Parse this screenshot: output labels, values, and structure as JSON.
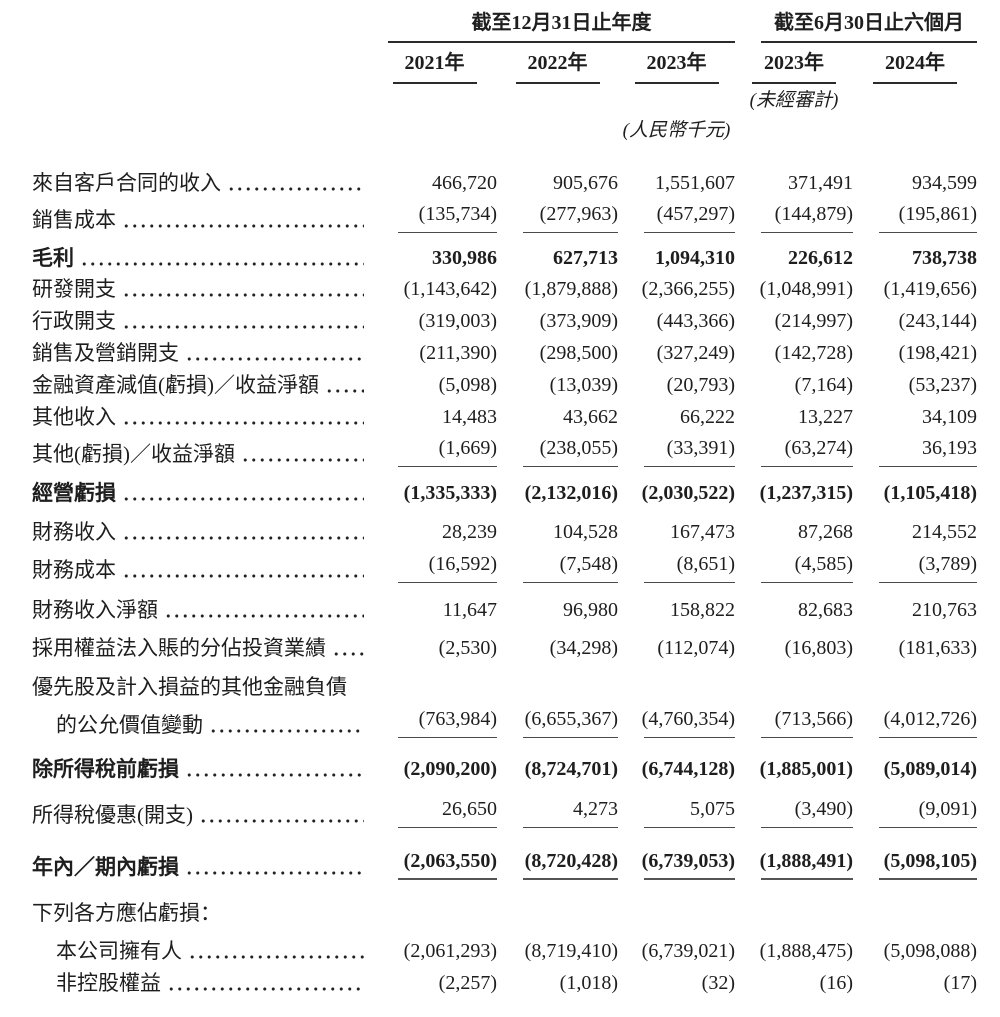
{
  "header": {
    "group_annual": {
      "label": "截至12月31日止年度",
      "years": [
        "2021年",
        "2022年",
        "2023年"
      ]
    },
    "group_interim": {
      "label": "截至6月30日止六個月",
      "years": [
        "2023年",
        "2024年"
      ]
    },
    "unaudited_note": "(未經審計)",
    "currency_note": "(人民幣千元)"
  },
  "rows": [
    {
      "label": "來自客戶合同的收入",
      "values": [
        "466,720",
        "905,676",
        "1,551,607",
        "371,491",
        "934,599"
      ],
      "bold": false,
      "indent": false,
      "leader": true,
      "rule": false,
      "strong_rule": false,
      "gap": 0
    },
    {
      "label": "銷售成本",
      "values": [
        "(135,734)",
        "(277,963)",
        "(457,297)",
        "(144,879)",
        "(195,861)"
      ],
      "bold": false,
      "indent": false,
      "leader": true,
      "rule": true,
      "strong_rule": false,
      "gap": 5
    },
    {
      "label": "毛利",
      "values": [
        "330,986",
        "627,713",
        "1,094,310",
        "226,612",
        "738,738"
      ],
      "bold": true,
      "indent": false,
      "leader": true,
      "rule": false,
      "strong_rule": false,
      "gap": 12
    },
    {
      "label": "研發開支",
      "values": [
        "(1,143,642)",
        "(1,879,888)",
        "(2,366,255)",
        "(1,048,991)",
        "(1,419,656)"
      ],
      "bold": false,
      "indent": false,
      "leader": true,
      "rule": false,
      "strong_rule": false,
      "gap": 5
    },
    {
      "label": "行政開支",
      "values": [
        "(319,003)",
        "(373,909)",
        "(443,366)",
        "(214,997)",
        "(243,144)"
      ],
      "bold": false,
      "indent": false,
      "leader": true,
      "rule": false,
      "strong_rule": false,
      "gap": 6
    },
    {
      "label": "銷售及營銷開支",
      "values": [
        "(211,390)",
        "(298,500)",
        "(327,249)",
        "(142,728)",
        "(198,421)"
      ],
      "bold": false,
      "indent": false,
      "leader": true,
      "rule": false,
      "strong_rule": false,
      "gap": 6
    },
    {
      "label": "金融資產減值(虧損)／收益淨額",
      "values": [
        "(5,098)",
        "(13,039)",
        "(20,793)",
        "(7,164)",
        "(53,237)"
      ],
      "bold": false,
      "indent": false,
      "leader": true,
      "rule": false,
      "strong_rule": false,
      "gap": 6
    },
    {
      "label": "其他收入",
      "values": [
        "14,483",
        "43,662",
        "66,222",
        "13,227",
        "34,109"
      ],
      "bold": false,
      "indent": false,
      "leader": true,
      "rule": false,
      "strong_rule": false,
      "gap": 6
    },
    {
      "label": "其他(虧損)／收益淨額",
      "values": [
        "(1,669)",
        "(238,055)",
        "(33,391)",
        "(63,274)",
        "36,193"
      ],
      "bold": false,
      "indent": false,
      "leader": true,
      "rule": true,
      "strong_rule": false,
      "gap": 5
    },
    {
      "label": "經營虧損",
      "values": [
        "(1,335,333)",
        "(2,132,016)",
        "(2,030,522)",
        "(1,237,315)",
        "(1,105,418)"
      ],
      "bold": true,
      "indent": false,
      "leader": true,
      "rule": false,
      "strong_rule": false,
      "gap": 13
    },
    {
      "label": "財務收入",
      "values": [
        "28,239",
        "104,528",
        "167,473",
        "87,268",
        "214,552"
      ],
      "bold": false,
      "indent": false,
      "leader": true,
      "rule": false,
      "strong_rule": false,
      "gap": 13
    },
    {
      "label": "財務成本",
      "values": [
        "(16,592)",
        "(7,548)",
        "(8,651)",
        "(4,585)",
        "(3,789)"
      ],
      "bold": false,
      "indent": false,
      "leader": true,
      "rule": true,
      "strong_rule": false,
      "gap": 6
    },
    {
      "label": "財務收入淨額",
      "values": [
        "11,647",
        "96,980",
        "158,822",
        "82,683",
        "210,763"
      ],
      "bold": false,
      "indent": false,
      "leader": true,
      "rule": false,
      "strong_rule": false,
      "gap": 14
    },
    {
      "label": "採用權益法入賬的分佔投資業績",
      "values": [
        "(2,530)",
        "(34,298)",
        "(112,074)",
        "(16,803)",
        "(181,633)"
      ],
      "bold": false,
      "indent": false,
      "leader": true,
      "rule": false,
      "strong_rule": false,
      "gap": 12
    },
    {
      "label": "優先股及計入損益的其他金融負債",
      "values": [],
      "bold": false,
      "indent": false,
      "leader": false,
      "rule": false,
      "strong_rule": false,
      "gap": 13
    },
    {
      "label": "的公允價值變動",
      "values": [
        "(763,984)",
        "(6,655,367)",
        "(4,760,354)",
        "(713,566)",
        "(4,012,726)"
      ],
      "bold": false,
      "indent": true,
      "leader": true,
      "rule": true,
      "strong_rule": false,
      "gap": 6
    },
    {
      "label": "除所得稅前虧損",
      "values": [
        "(2,090,200)",
        "(8,724,701)",
        "(6,744,128)",
        "(1,885,001)",
        "(5,089,014)"
      ],
      "bold": true,
      "indent": false,
      "leader": true,
      "rule": false,
      "strong_rule": false,
      "gap": 18
    },
    {
      "label": "所得稅優惠(開支)",
      "values": [
        "26,650",
        "4,273",
        "5,075",
        "(3,490)",
        "(9,091)"
      ],
      "bold": false,
      "indent": false,
      "leader": true,
      "rule": true,
      "strong_rule": false,
      "gap": 14
    },
    {
      "label": "年內／期內虧損",
      "values": [
        "(2,063,550)",
        "(8,720,428)",
        "(6,739,053)",
        "(1,888,491)",
        "(5,098,105)"
      ],
      "bold": true,
      "indent": false,
      "leader": true,
      "rule": true,
      "strong_rule": true,
      "gap": 20
    },
    {
      "label": "下列各方應佔虧損：",
      "values": [],
      "bold": false,
      "indent": false,
      "leader": false,
      "rule": false,
      "strong_rule": false,
      "gap": 20
    },
    {
      "label": "本公司擁有人",
      "values": [
        "(2,061,293)",
        "(8,719,410)",
        "(6,739,021)",
        "(1,888,475)",
        "(5,098,088)"
      ],
      "bold": false,
      "indent": true,
      "leader": true,
      "rule": false,
      "strong_rule": false,
      "gap": 12
    },
    {
      "label": "非控股權益",
      "values": [
        "(2,257)",
        "(1,018)",
        "(32)",
        "(16)",
        "(17)"
      ],
      "bold": false,
      "indent": true,
      "leader": true,
      "rule": false,
      "strong_rule": false,
      "gap": 6
    }
  ]
}
